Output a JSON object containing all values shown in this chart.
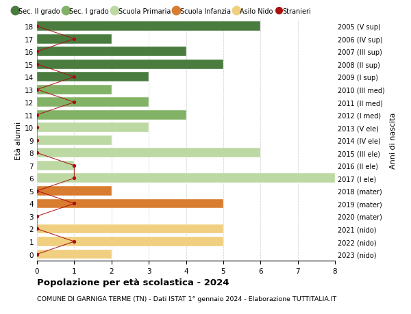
{
  "ages": [
    18,
    17,
    16,
    15,
    14,
    13,
    12,
    11,
    10,
    9,
    8,
    7,
    6,
    5,
    4,
    3,
    2,
    1,
    0
  ],
  "right_labels": [
    "2005 (V sup)",
    "2006 (IV sup)",
    "2007 (III sup)",
    "2008 (II sup)",
    "2009 (I sup)",
    "2010 (III med)",
    "2011 (II med)",
    "2012 (I med)",
    "2013 (V ele)",
    "2014 (IV ele)",
    "2015 (III ele)",
    "2016 (II ele)",
    "2017 (I ele)",
    "2018 (mater)",
    "2019 (mater)",
    "2020 (mater)",
    "2021 (nido)",
    "2022 (nido)",
    "2023 (nido)"
  ],
  "bar_values": [
    6,
    2,
    4,
    5,
    3,
    2,
    3,
    4,
    3,
    2,
    6,
    1,
    8,
    2,
    5,
    0,
    5,
    5,
    2
  ],
  "bar_colors": [
    "#4a7c40",
    "#4a7c40",
    "#4a7c40",
    "#4a7c40",
    "#4a7c40",
    "#82b265",
    "#82b265",
    "#82b265",
    "#bdd9a3",
    "#bdd9a3",
    "#bdd9a3",
    "#bdd9a3",
    "#bdd9a3",
    "#d87c30",
    "#d87c30",
    "#d87c30",
    "#f0d080",
    "#f0d080",
    "#f0d080"
  ],
  "stranieri_values": [
    0,
    1,
    0,
    0,
    1,
    0,
    1,
    0,
    0,
    0,
    0,
    1,
    1,
    0,
    1,
    0,
    0,
    1,
    0
  ],
  "stranieri_color": "#aa1111",
  "legend_entries": [
    {
      "label": "Sec. II grado",
      "color": "#4a7c40"
    },
    {
      "label": "Sec. I grado",
      "color": "#82b265"
    },
    {
      "label": "Scuola Primaria",
      "color": "#bdd9a3"
    },
    {
      "label": "Scuola Infanzia",
      "color": "#d87c30"
    },
    {
      "label": "Asilo Nido",
      "color": "#f0d080"
    },
    {
      "label": "Stranieri",
      "color": "#aa1111"
    }
  ],
  "ylabel_left": "Età alunni",
  "ylabel_right": "Anni di nascita",
  "title_bold": "Popolazione per età scolastica - 2024",
  "subtitle": "COMUNE DI GARNIGA TERME (TN) - Dati ISTAT 1° gennaio 2024 - Elaborazione TUTTITALIA.IT",
  "xlim": [
    0,
    8
  ],
  "xticks": [
    0,
    1,
    2,
    3,
    4,
    5,
    6,
    7,
    8
  ],
  "ylim": [
    -0.5,
    18.5
  ],
  "background_color": "#ffffff",
  "grid_color": "#cccccc"
}
